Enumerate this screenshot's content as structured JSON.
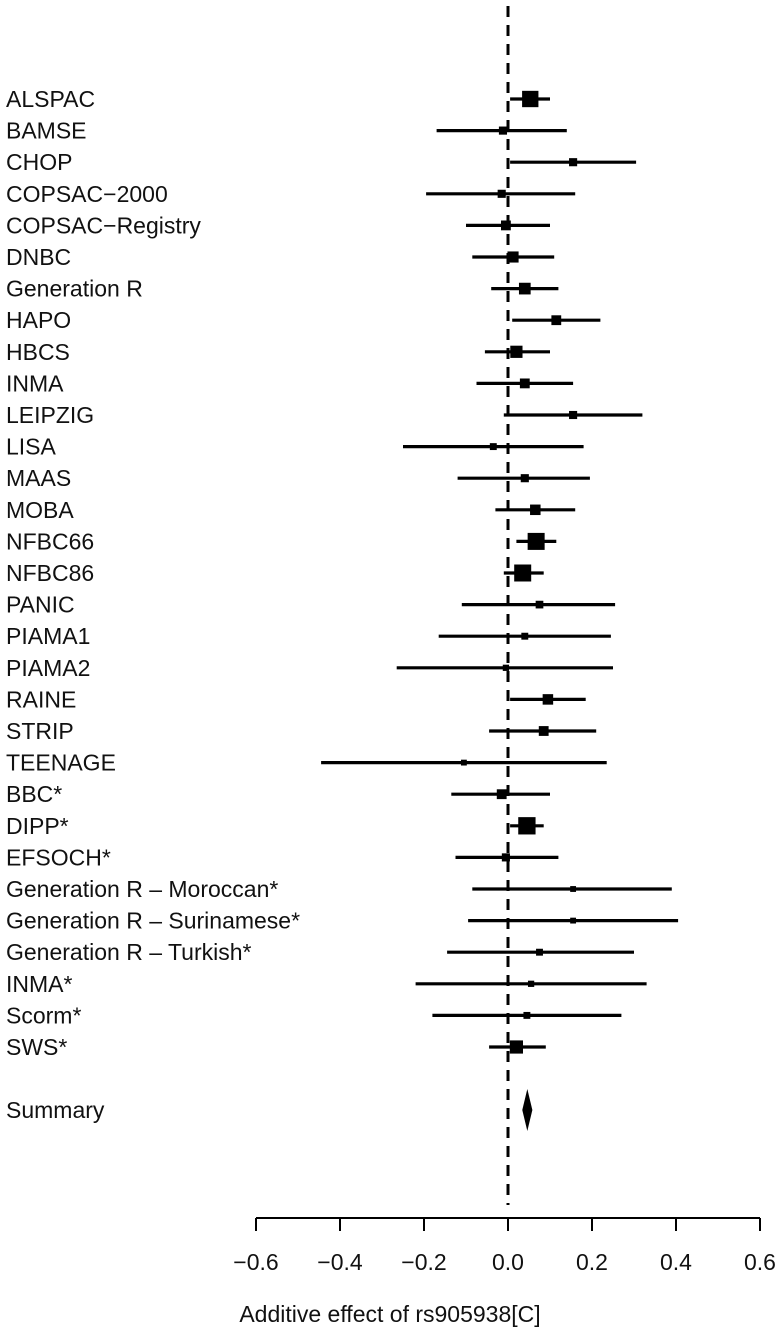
{
  "chart_data": {
    "type": "forest",
    "xlabel": "Additive effect of rs905938[C]",
    "xlim": [
      -0.6,
      0.6
    ],
    "xticks": [
      -0.6,
      -0.4,
      -0.2,
      0.0,
      0.2,
      0.4,
      0.6
    ],
    "xtick_labels": [
      "−0.6",
      "−0.4",
      "−0.2",
      "0.0",
      "0.2",
      "0.4",
      "0.6"
    ],
    "reference_line": 0,
    "studies": [
      {
        "name": "ALSPAC",
        "estimate": 0.053,
        "lower": 0.005,
        "upper": 0.1,
        "weight": 0.9
      },
      {
        "name": "BAMSE",
        "estimate": -0.012,
        "lower": -0.17,
        "upper": 0.14,
        "weight": 0.1
      },
      {
        "name": "CHOP",
        "estimate": 0.155,
        "lower": 0.005,
        "upper": 0.305,
        "weight": 0.1
      },
      {
        "name": "COPSAC−2000",
        "estimate": -0.015,
        "lower": -0.195,
        "upper": 0.16,
        "weight": 0.1
      },
      {
        "name": "COPSAC−Registry",
        "estimate": -0.005,
        "lower": -0.1,
        "upper": 0.1,
        "weight": 0.2
      },
      {
        "name": "DNBC",
        "estimate": 0.012,
        "lower": -0.085,
        "upper": 0.11,
        "weight": 0.3
      },
      {
        "name": "Generation R",
        "estimate": 0.04,
        "lower": -0.04,
        "upper": 0.12,
        "weight": 0.35
      },
      {
        "name": "HAPO",
        "estimate": 0.115,
        "lower": 0.01,
        "upper": 0.22,
        "weight": 0.2
      },
      {
        "name": "HBCS",
        "estimate": 0.02,
        "lower": -0.055,
        "upper": 0.1,
        "weight": 0.4
      },
      {
        "name": "INMA",
        "estimate": 0.04,
        "lower": -0.075,
        "upper": 0.155,
        "weight": 0.2
      },
      {
        "name": "LEIPZIG",
        "estimate": 0.155,
        "lower": -0.01,
        "upper": 0.32,
        "weight": 0.1
      },
      {
        "name": "LISA",
        "estimate": -0.035,
        "lower": -0.25,
        "upper": 0.18,
        "weight": 0.05
      },
      {
        "name": "MAAS",
        "estimate": 0.04,
        "lower": -0.12,
        "upper": 0.195,
        "weight": 0.1
      },
      {
        "name": "MOBA",
        "estimate": 0.065,
        "lower": -0.03,
        "upper": 0.16,
        "weight": 0.25
      },
      {
        "name": "NFBC66",
        "estimate": 0.067,
        "lower": 0.02,
        "upper": 0.115,
        "weight": 1.0
      },
      {
        "name": "NFBC86",
        "estimate": 0.035,
        "lower": -0.01,
        "upper": 0.085,
        "weight": 1.0
      },
      {
        "name": "PANIC",
        "estimate": 0.075,
        "lower": -0.11,
        "upper": 0.255,
        "weight": 0.08
      },
      {
        "name": "PIAMA1",
        "estimate": 0.04,
        "lower": -0.165,
        "upper": 0.245,
        "weight": 0.05
      },
      {
        "name": "PIAMA2",
        "estimate": -0.005,
        "lower": -0.265,
        "upper": 0.25,
        "weight": 0.03
      },
      {
        "name": "RAINE",
        "estimate": 0.095,
        "lower": 0.005,
        "upper": 0.185,
        "weight": 0.25
      },
      {
        "name": "STRIP",
        "estimate": 0.085,
        "lower": -0.045,
        "upper": 0.21,
        "weight": 0.2
      },
      {
        "name": "TEENAGE",
        "estimate": -0.105,
        "lower": -0.445,
        "upper": 0.235,
        "weight": 0.02
      },
      {
        "name": "BBC*",
        "estimate": -0.015,
        "lower": -0.135,
        "upper": 0.1,
        "weight": 0.2
      },
      {
        "name": "DIPP*",
        "estimate": 0.045,
        "lower": 0.005,
        "upper": 0.085,
        "weight": 1.05
      },
      {
        "name": "EFSOCH*",
        "estimate": -0.005,
        "lower": -0.125,
        "upper": 0.12,
        "weight": 0.1
      },
      {
        "name": "Generation R – Moroccan*",
        "estimate": 0.155,
        "lower": -0.085,
        "upper": 0.39,
        "weight": 0.02
      },
      {
        "name": "Generation R – Surinamese*",
        "estimate": 0.155,
        "lower": -0.095,
        "upper": 0.405,
        "weight": 0.02
      },
      {
        "name": "Generation R – Turkish*",
        "estimate": 0.075,
        "lower": -0.145,
        "upper": 0.3,
        "weight": 0.05
      },
      {
        "name": "INMA*",
        "estimate": 0.055,
        "lower": -0.22,
        "upper": 0.33,
        "weight": 0.03
      },
      {
        "name": "Scorm*",
        "estimate": 0.045,
        "lower": -0.18,
        "upper": 0.27,
        "weight": 0.05
      },
      {
        "name": "SWS*",
        "estimate": 0.02,
        "lower": -0.045,
        "upper": 0.09,
        "weight": 0.5
      }
    ],
    "summary": {
      "name": "Summary",
      "estimate": 0.046,
      "lower": 0.034,
      "upper": 0.058
    }
  }
}
